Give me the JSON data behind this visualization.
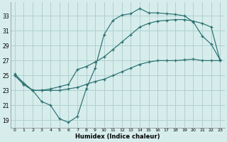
{
  "xlabel": "Humidex (Indice chaleur)",
  "bg_color": "#d6edec",
  "grid_color": "#b0d0d0",
  "line_color": "#2a7070",
  "xlim": [
    -0.5,
    23.5
  ],
  "ylim": [
    18.0,
    34.8
  ],
  "xticks": [
    0,
    1,
    2,
    3,
    4,
    5,
    6,
    7,
    8,
    9,
    10,
    11,
    12,
    13,
    14,
    15,
    16,
    17,
    18,
    19,
    20,
    21,
    22,
    23
  ],
  "yticks": [
    19,
    21,
    23,
    25,
    27,
    29,
    31,
    33
  ],
  "line1_x": [
    0,
    1,
    2,
    3,
    4,
    5,
    6,
    7,
    8,
    9,
    10,
    11,
    12,
    13,
    14,
    15,
    16,
    17,
    18,
    19,
    20,
    21,
    22,
    23
  ],
  "line1_y": [
    25.2,
    24.0,
    23.0,
    21.5,
    21.0,
    19.2,
    18.7,
    19.5,
    23.2,
    26.0,
    30.5,
    32.4,
    33.1,
    33.3,
    34.0,
    33.4,
    33.4,
    33.3,
    33.2,
    33.0,
    32.2,
    30.3,
    29.2,
    27.1
  ],
  "line2_x": [
    0,
    1,
    2,
    3,
    4,
    5,
    6,
    7,
    8,
    9,
    10,
    11,
    12,
    13,
    14,
    15,
    16,
    17,
    18,
    19,
    20,
    21,
    22,
    23
  ],
  "line2_y": [
    25.0,
    23.8,
    23.0,
    23.0,
    23.2,
    23.5,
    23.8,
    25.8,
    26.2,
    26.8,
    27.5,
    28.5,
    29.5,
    30.5,
    31.5,
    32.0,
    32.3,
    32.4,
    32.5,
    32.5,
    32.3,
    32.0,
    31.5,
    27.0
  ],
  "line3_x": [
    0,
    1,
    2,
    3,
    4,
    5,
    6,
    7,
    8,
    9,
    10,
    11,
    12,
    13,
    14,
    15,
    16,
    17,
    18,
    19,
    20,
    21,
    22,
    23
  ],
  "line3_y": [
    25.0,
    23.8,
    23.0,
    23.0,
    23.0,
    23.0,
    23.2,
    23.4,
    23.8,
    24.2,
    24.5,
    25.0,
    25.5,
    26.0,
    26.5,
    26.8,
    27.0,
    27.0,
    27.0,
    27.1,
    27.2,
    27.0,
    27.0,
    27.0
  ]
}
